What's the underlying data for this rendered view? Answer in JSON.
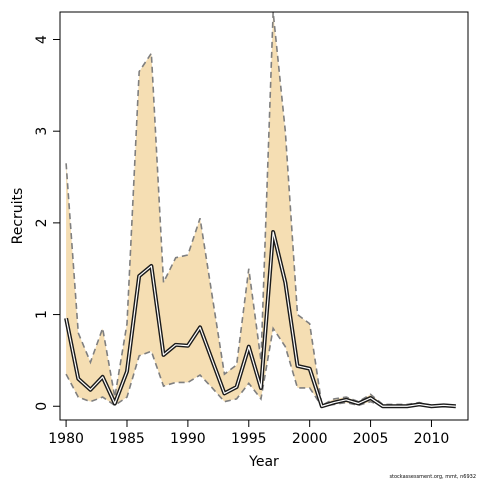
{
  "chart_data": {
    "type": "line",
    "title": "",
    "xlabel": "Year",
    "ylabel": "Recruits",
    "xlim": [
      1979.5,
      2013
    ],
    "ylim": [
      -0.15,
      4.3
    ],
    "xticks": [
      1980,
      1985,
      1990,
      1995,
      2000,
      2005,
      2010
    ],
    "yticks": [
      0,
      1,
      2,
      3,
      4
    ],
    "grid": false,
    "legend": "none",
    "colors": {
      "band_fill": "#f5deb3",
      "bound_line": "#7f7f7f",
      "median_outer": "#1a1a1a",
      "median_inner": "#ffffff"
    },
    "x": [
      1980,
      1981,
      1982,
      1983,
      1984,
      1985,
      1986,
      1987,
      1988,
      1989,
      1990,
      1991,
      1992,
      1993,
      1994,
      1995,
      1996,
      1997,
      1998,
      1999,
      2000,
      2001,
      2002,
      2003,
      2004,
      2005,
      2006,
      2007,
      2008,
      2009,
      2010,
      2011,
      2012
    ],
    "series": [
      {
        "role": "median",
        "values": [
          0.96,
          0.3,
          0.18,
          0.32,
          0.03,
          0.38,
          1.42,
          1.53,
          0.56,
          0.67,
          0.66,
          0.86,
          0.5,
          0.14,
          0.21,
          0.65,
          0.2,
          1.9,
          1.35,
          0.44,
          0.41,
          0.0,
          0.04,
          0.07,
          0.03,
          0.09,
          0.0,
          0.0,
          0.0,
          0.02,
          0.0,
          0.01,
          0.0
        ]
      },
      {
        "role": "upper",
        "values": [
          2.65,
          0.8,
          0.48,
          0.85,
          0.1,
          0.9,
          3.65,
          3.85,
          1.35,
          1.62,
          1.65,
          2.05,
          1.2,
          0.35,
          0.45,
          1.5,
          0.5,
          4.3,
          3.0,
          1.0,
          0.9,
          0.01,
          0.08,
          0.1,
          0.05,
          0.13,
          0.02,
          0.02,
          0.02,
          0.04,
          0.01,
          0.02,
          0.01
        ]
      },
      {
        "role": "lower",
        "values": [
          0.35,
          0.1,
          0.05,
          0.1,
          0.01,
          0.1,
          0.55,
          0.6,
          0.22,
          0.26,
          0.26,
          0.34,
          0.2,
          0.05,
          0.08,
          0.25,
          0.08,
          0.85,
          0.65,
          0.2,
          0.2,
          0.0,
          0.02,
          0.04,
          0.01,
          0.05,
          0.0,
          0.0,
          0.0,
          0.01,
          0.0,
          0.0,
          0.0
        ]
      }
    ]
  },
  "footnote": "stockassessment.org, mmt, n6932"
}
